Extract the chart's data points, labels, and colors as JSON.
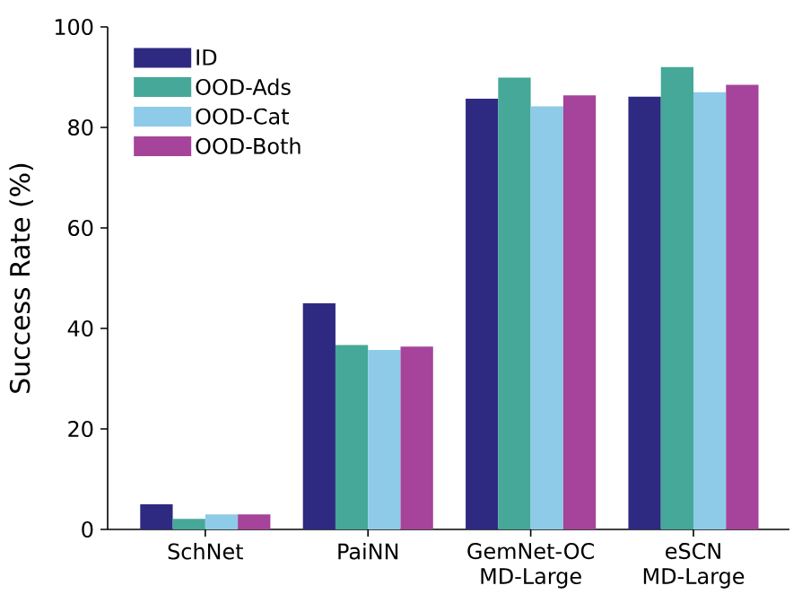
{
  "chart_data": {
    "type": "bar",
    "ylabel": "Success Rate (%)",
    "categories": [
      "SchNet",
      "PaiNN",
      "GemNet-OC MD-Large",
      "eSCN MD-Large"
    ],
    "series": [
      {
        "name": "ID",
        "color": "#2e2a82",
        "values": [
          5.0,
          45.0,
          85.7,
          86.1
        ]
      },
      {
        "name": "OOD-Ads",
        "color": "#45a898",
        "values": [
          2.1,
          36.7,
          89.9,
          92.0
        ]
      },
      {
        "name": "OOD-Cat",
        "color": "#8ecbe8",
        "values": [
          3.0,
          35.7,
          84.2,
          87.0
        ]
      },
      {
        "name": "OOD-Both",
        "color": "#a5449a",
        "values": [
          3.0,
          36.4,
          86.4,
          88.5
        ]
      }
    ],
    "ylim": [
      0,
      100
    ],
    "yticks": [
      0,
      20,
      40,
      60,
      80,
      100
    ],
    "grid": false,
    "legend": "top left"
  }
}
